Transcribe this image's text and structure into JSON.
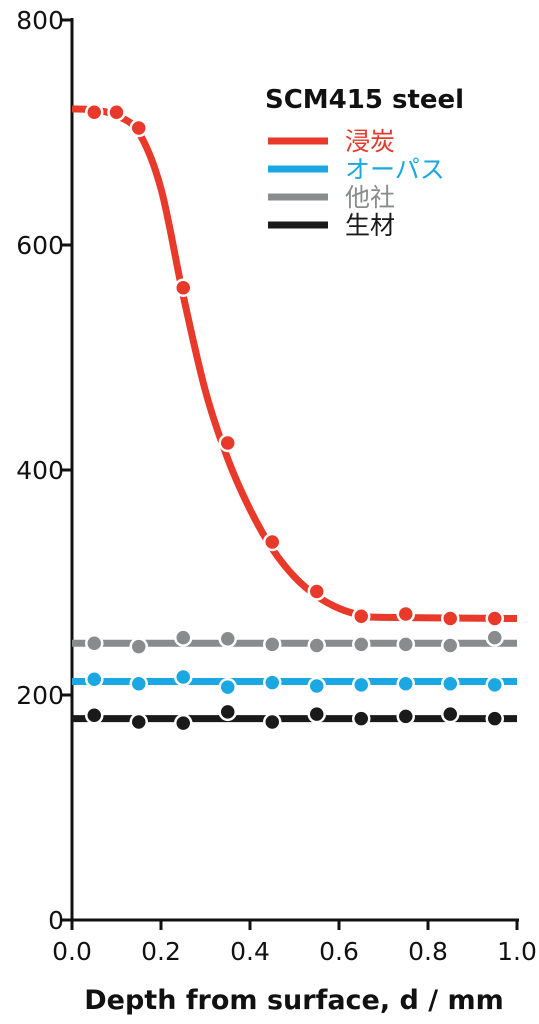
{
  "chart_data": {
    "type": "line",
    "title": "",
    "xlabel": "Depth from surface, d / mm",
    "ylabel": "",
    "xlim": [
      0,
      1.0
    ],
    "ylim": [
      0,
      800
    ],
    "x_ticks": [
      "0.0",
      "0.2",
      "0.4",
      "0.6",
      "0.8",
      "1.0"
    ],
    "y_ticks": [
      "0",
      "200",
      "400",
      "600",
      "800"
    ],
    "legend_title": "SCM415 steel",
    "legend_position": "top-right",
    "grid": false,
    "series": [
      {
        "name": "浸炭",
        "color": "#e8392a",
        "points": [
          [
            0.05,
            718
          ],
          [
            0.1,
            718
          ],
          [
            0.15,
            704
          ],
          [
            0.25,
            562
          ],
          [
            0.35,
            424
          ],
          [
            0.45,
            336
          ],
          [
            0.55,
            292
          ],
          [
            0.65,
            270
          ],
          [
            0.75,
            272
          ],
          [
            0.85,
            268
          ],
          [
            0.95,
            268
          ]
        ],
        "curve": [
          [
            0.0,
            721
          ],
          [
            0.05,
            720
          ],
          [
            0.1,
            715
          ],
          [
            0.15,
            700
          ],
          [
            0.2,
            650
          ],
          [
            0.25,
            555
          ],
          [
            0.3,
            470
          ],
          [
            0.35,
            410
          ],
          [
            0.4,
            365
          ],
          [
            0.45,
            330
          ],
          [
            0.5,
            305
          ],
          [
            0.55,
            288
          ],
          [
            0.6,
            277
          ],
          [
            0.65,
            271
          ],
          [
            0.7,
            269
          ],
          [
            1.0,
            268
          ]
        ]
      },
      {
        "name": "オーパス",
        "color": "#1ba7e1",
        "points": [
          [
            0.05,
            214
          ],
          [
            0.15,
            210
          ],
          [
            0.25,
            216
          ],
          [
            0.35,
            207
          ],
          [
            0.45,
            211
          ],
          [
            0.55,
            208
          ],
          [
            0.65,
            209
          ],
          [
            0.75,
            210
          ],
          [
            0.85,
            210
          ],
          [
            0.95,
            209
          ]
        ],
        "curve": [
          [
            0.0,
            212
          ],
          [
            1.0,
            212
          ]
        ]
      },
      {
        "name": "他社",
        "color": "#8a8b8d",
        "points": [
          [
            0.05,
            246
          ],
          [
            0.15,
            243
          ],
          [
            0.25,
            251
          ],
          [
            0.35,
            250
          ],
          [
            0.45,
            245
          ],
          [
            0.55,
            244
          ],
          [
            0.65,
            245
          ],
          [
            0.75,
            245
          ],
          [
            0.85,
            244
          ],
          [
            0.95,
            251
          ]
        ],
        "curve": [
          [
            0.0,
            246
          ],
          [
            1.0,
            246
          ]
        ]
      },
      {
        "name": "生材",
        "color": "#1a1a1a",
        "points": [
          [
            0.05,
            182
          ],
          [
            0.15,
            176
          ],
          [
            0.25,
            175
          ],
          [
            0.35,
            185
          ],
          [
            0.45,
            176
          ],
          [
            0.55,
            183
          ],
          [
            0.65,
            179
          ],
          [
            0.75,
            181
          ],
          [
            0.85,
            183
          ],
          [
            0.95,
            179
          ]
        ],
        "curve": [
          [
            0.0,
            179
          ],
          [
            1.0,
            179
          ]
        ]
      }
    ]
  }
}
